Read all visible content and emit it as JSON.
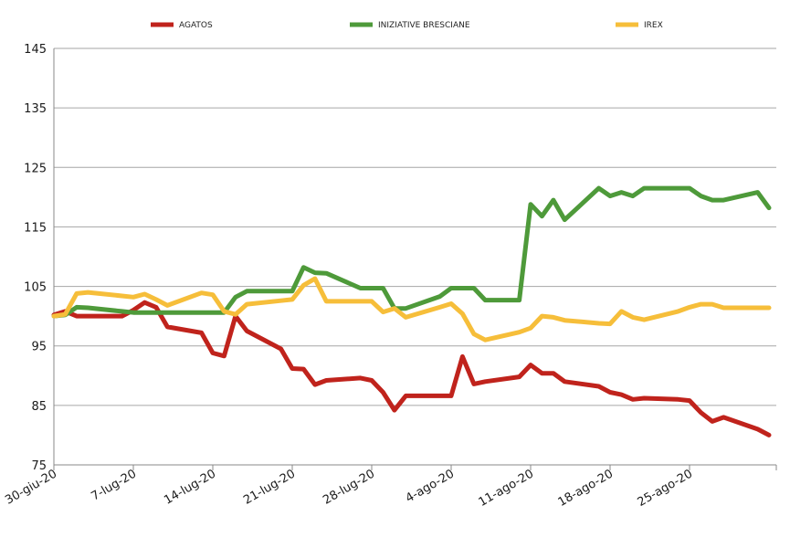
{
  "chart_data": {
    "type": "line",
    "title": "",
    "xlabel": "",
    "ylabel": "",
    "ylim": [
      75,
      145
    ],
    "yticks": [
      75,
      85,
      95,
      105,
      115,
      125,
      135,
      145
    ],
    "x_unit": "days since 30-giu-20",
    "xlim": [
      0,
      63
    ],
    "xticks": [
      {
        "day": 0,
        "label": "30-giu-20"
      },
      {
        "day": 7,
        "label": "7-lug-20"
      },
      {
        "day": 14,
        "label": "14-lug-20"
      },
      {
        "day": 21,
        "label": "21-lug-20"
      },
      {
        "day": 28,
        "label": "28-lug-20"
      },
      {
        "day": 35,
        "label": "4-ago-20"
      },
      {
        "day": 42,
        "label": "11-ago-20"
      },
      {
        "day": 49,
        "label": "18-ago-20"
      },
      {
        "day": 56,
        "label": "25-ago-20"
      }
    ],
    "grid": "horizontal",
    "legend_position": "top",
    "x": [
      0,
      1,
      2,
      3,
      6,
      7,
      8,
      9,
      10,
      13,
      14,
      15,
      16,
      17,
      20,
      21,
      22,
      23,
      24,
      27,
      28,
      29,
      30,
      31,
      34,
      35,
      36,
      37,
      38,
      41,
      42,
      43,
      44,
      45,
      48,
      49,
      50,
      51,
      52,
      55,
      56,
      57,
      58,
      59,
      62,
      63
    ],
    "series": [
      {
        "name": "AGATOS",
        "color": "#C0231C",
        "values": [
          100.2,
          100.8,
          100,
          100,
          100,
          101,
          102.3,
          101.5,
          98.2,
          97.2,
          93.8,
          93.3,
          100,
          97.5,
          94.5,
          91.2,
          91.1,
          88.5,
          89.2,
          89.6,
          89.2,
          87.2,
          84.2,
          86.6,
          86.6,
          86.6,
          93.2,
          88.6,
          89,
          89.8,
          91.8,
          90.4,
          90.4,
          89,
          88.2,
          87.2,
          86.8,
          86,
          86.2,
          86,
          85.8,
          83.8,
          82.3,
          83,
          81,
          80
        ]
      },
      {
        "name": "INIZIATIVE BRESCIANE",
        "color": "#4E9A3A",
        "values": [
          100,
          100.2,
          101.5,
          101.4,
          100.8,
          100.6,
          100.6,
          100.6,
          100.6,
          100.6,
          100.6,
          100.6,
          103.2,
          104.2,
          104.2,
          104.2,
          108.2,
          107.3,
          107.2,
          104.7,
          104.7,
          104.7,
          101.3,
          101.3,
          103.3,
          104.7,
          104.7,
          104.7,
          102.7,
          102.7,
          118.8,
          116.8,
          119.5,
          116.2,
          121.5,
          120.2,
          120.8,
          120.2,
          121.5,
          121.5,
          121.5,
          120.2,
          119.5,
          119.5,
          120.8,
          118.2
        ]
      },
      {
        "name": "IREX",
        "color": "#F6BE3A",
        "values": [
          100,
          100.3,
          103.8,
          104,
          103.4,
          103.2,
          103.7,
          102.8,
          101.8,
          103.9,
          103.6,
          100.8,
          100.3,
          102,
          102.6,
          102.8,
          105.2,
          106.3,
          102.5,
          102.5,
          102.5,
          100.7,
          101.3,
          99.8,
          101.5,
          102.1,
          100.4,
          97,
          96,
          97.3,
          98,
          100,
          99.8,
          99.3,
          98.8,
          98.7,
          100.8,
          99.8,
          99.4,
          100.8,
          101.5,
          102,
          102,
          101.4,
          101.4,
          101.4
        ]
      }
    ]
  }
}
